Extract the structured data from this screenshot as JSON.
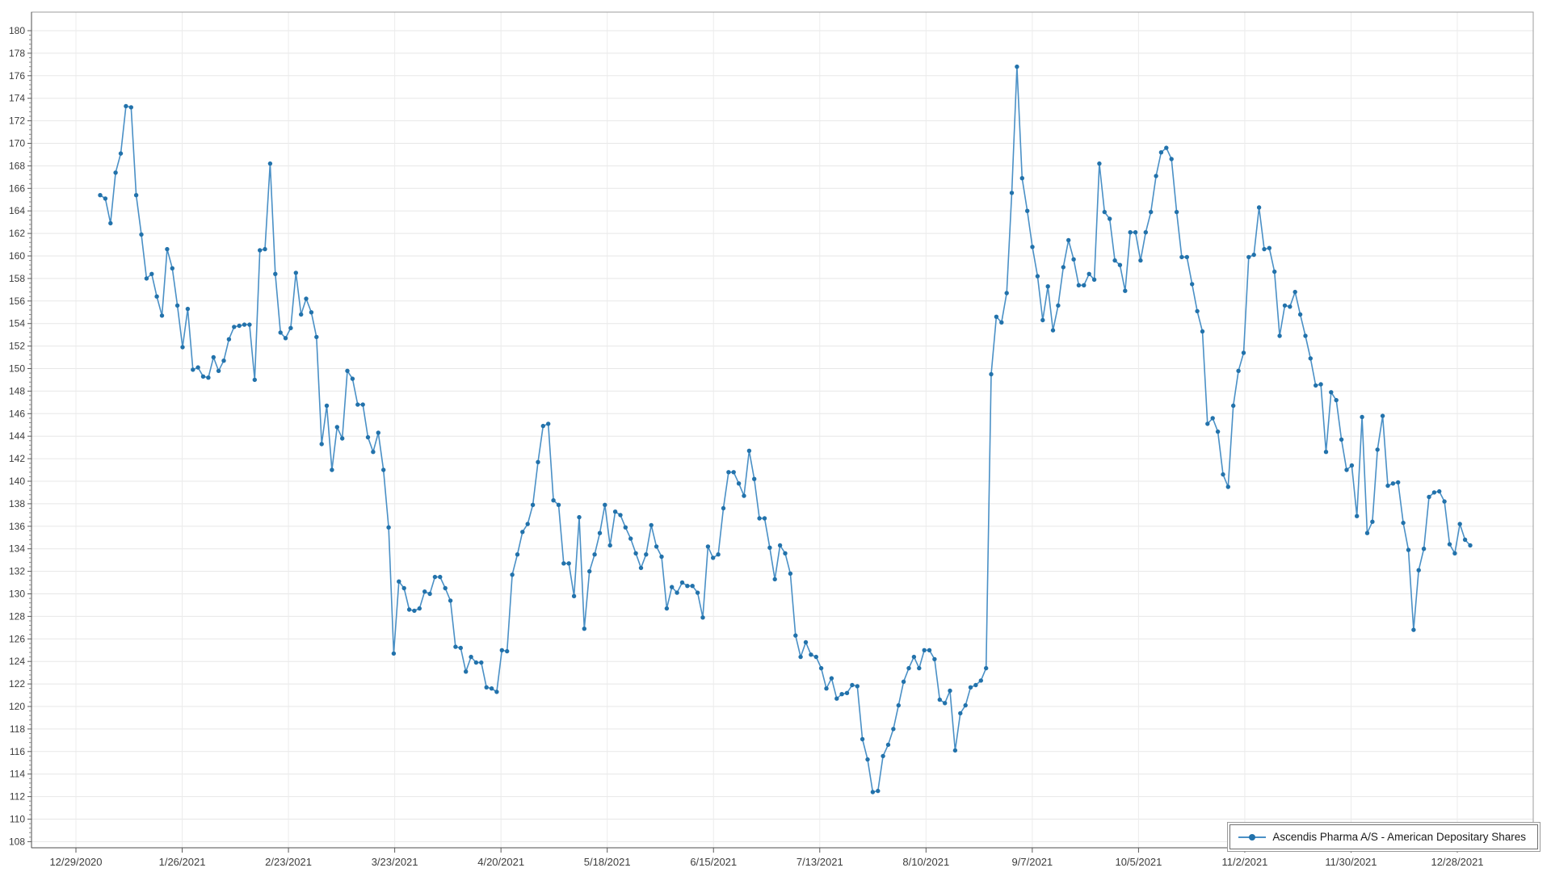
{
  "chart_data": {
    "type": "line",
    "title": "",
    "xlabel": "",
    "ylabel": "",
    "grid": true,
    "legend_position": "bottom-right",
    "x_tick_labels": [
      "12/29/2020",
      "1/26/2021",
      "2/23/2021",
      "3/23/2021",
      "4/20/2021",
      "5/18/2021",
      "6/15/2021",
      "7/13/2021",
      "8/10/2021",
      "9/7/2021",
      "10/5/2021",
      "11/2/2021",
      "11/30/2021",
      "12/28/2021"
    ],
    "y_axis": {
      "min": 108,
      "max": 180,
      "tick_step": 2,
      "minor_tick_step": 0.4
    },
    "series": [
      {
        "name": "Ascendis Pharma A/S - American Depositary Shares",
        "line_color": "#4a90c6",
        "marker_color": "#2272ab",
        "values": [
          165.4,
          165.1,
          162.9,
          167.4,
          169.1,
          173.3,
          173.2,
          165.4,
          161.9,
          158.0,
          158.4,
          156.4,
          154.7,
          160.6,
          158.9,
          155.6,
          151.9,
          155.3,
          149.9,
          150.1,
          149.3,
          149.2,
          151.0,
          149.8,
          150.7,
          152.6,
          153.7,
          153.8,
          153.9,
          153.9,
          149.0,
          160.5,
          160.6,
          168.2,
          158.4,
          153.2,
          152.7,
          153.6,
          158.5,
          154.8,
          156.2,
          155.0,
          152.8,
          143.3,
          146.7,
          141.0,
          144.8,
          143.8,
          149.8,
          149.1,
          146.8,
          146.8,
          143.9,
          142.6,
          144.3,
          141.0,
          135.9,
          124.7,
          131.1,
          130.5,
          128.6,
          128.5,
          128.7,
          130.2,
          130.0,
          131.5,
          131.5,
          130.5,
          129.4,
          125.3,
          125.2,
          123.1,
          124.4,
          123.9,
          123.9,
          121.7,
          121.6,
          121.3,
          125.0,
          124.9,
          131.7,
          133.5,
          135.5,
          136.2,
          137.9,
          141.7,
          144.9,
          145.1,
          138.3,
          137.9,
          132.7,
          132.7,
          129.8,
          136.8,
          126.9,
          132.0,
          133.5,
          135.4,
          137.9,
          134.3,
          137.3,
          137.0,
          135.9,
          134.9,
          133.6,
          132.3,
          133.5,
          136.1,
          134.2,
          133.3,
          128.7,
          130.6,
          130.1,
          131.0,
          130.7,
          130.7,
          130.1,
          127.9,
          134.2,
          133.2,
          133.5,
          137.6,
          140.8,
          140.8,
          139.8,
          138.7,
          142.7,
          140.2,
          136.7,
          136.7,
          134.1,
          131.3,
          134.3,
          133.6,
          131.8,
          126.3,
          124.4,
          125.7,
          124.6,
          124.4,
          123.4,
          121.6,
          122.5,
          120.7,
          121.1,
          121.2,
          121.9,
          121.8,
          117.1,
          115.3,
          112.4,
          112.5,
          115.6,
          116.6,
          118.0,
          120.1,
          122.2,
          123.4,
          124.4,
          123.4,
          125.0,
          125.0,
          124.2,
          120.6,
          120.3,
          121.4,
          116.1,
          119.4,
          120.1,
          121.7,
          121.9,
          122.3,
          123.4,
          149.5,
          154.6,
          154.1,
          156.7,
          165.6,
          176.8,
          166.9,
          164.0,
          160.8,
          158.2,
          154.3,
          157.3,
          153.4,
          155.6,
          159.0,
          161.4,
          159.7,
          157.4,
          157.4,
          158.4,
          157.9,
          168.2,
          163.9,
          163.3,
          159.6,
          159.2,
          156.9,
          162.1,
          162.1,
          159.6,
          162.1,
          163.9,
          167.1,
          169.2,
          169.6,
          168.6,
          163.9,
          159.9,
          159.9,
          157.5,
          155.1,
          153.3,
          145.1,
          145.6,
          144.4,
          140.6,
          139.5,
          146.7,
          149.8,
          151.4,
          159.9,
          160.1,
          164.3,
          160.6,
          160.7,
          158.6,
          152.9,
          155.6,
          155.5,
          156.8,
          154.8,
          152.9,
          150.9,
          148.5,
          148.6,
          142.6,
          147.9,
          147.2,
          143.7,
          141.0,
          141.4,
          136.9,
          145.7,
          135.4,
          136.4,
          142.8,
          145.8,
          139.6,
          139.8,
          139.9,
          136.3,
          133.9,
          126.8,
          132.1,
          134.0,
          138.6,
          139.0,
          139.1,
          138.2,
          134.4,
          133.6,
          136.2,
          134.8,
          134.3
        ]
      }
    ]
  },
  "legend": {
    "label": "Ascendis Pharma A/S - American Depositary Shares"
  }
}
